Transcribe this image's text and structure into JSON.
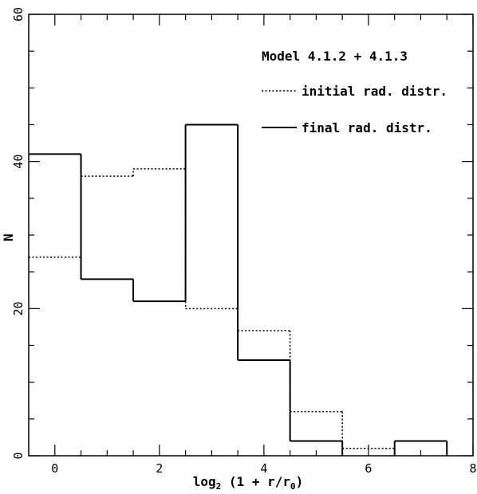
{
  "chart_data": {
    "type": "histogram",
    "title": "Model 4.1.2 + 4.1.3",
    "xlabel": "log2 (1 + r/r0)",
    "ylabel": "N",
    "xlim": [
      -0.5,
      8
    ],
    "ylim": [
      0,
      60
    ],
    "x_ticks": [
      0,
      2,
      4,
      6,
      8
    ],
    "y_ticks": [
      0,
      20,
      40,
      60
    ],
    "y_tick_labels": [
      "0",
      "20",
      "40",
      "60"
    ],
    "bin_edges": [
      -0.5,
      0.5,
      1.5,
      2.5,
      3.5,
      4.5,
      5.5,
      6.5,
      7.5
    ],
    "series": [
      {
        "name": "initial rad. distr.",
        "style": "dotted",
        "values": [
          27,
          38,
          39,
          20,
          17,
          6,
          1,
          2
        ]
      },
      {
        "name": "final rad. distr.",
        "style": "solid",
        "values": [
          41,
          24,
          21,
          45,
          13,
          2,
          0,
          2
        ]
      }
    ],
    "legend_position": "top-right",
    "grid": false
  }
}
